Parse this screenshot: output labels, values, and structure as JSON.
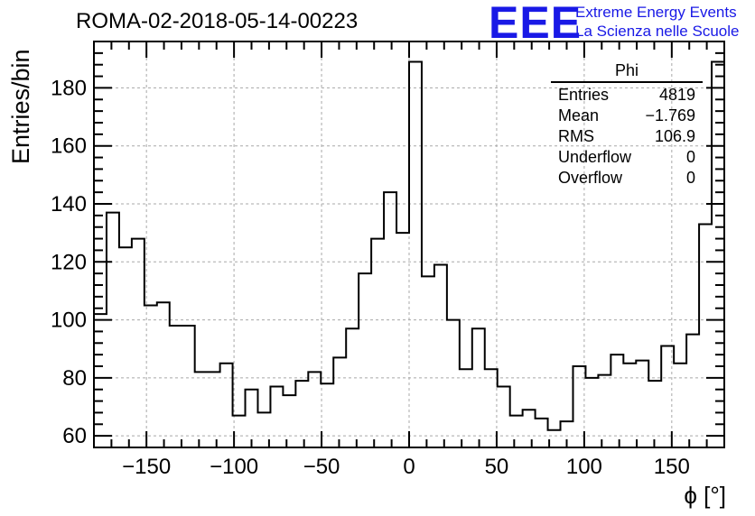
{
  "title": "ROMA-02-2018-05-14-00223",
  "logo": {
    "mark": "EEE",
    "line1": "Extreme Energy Events",
    "line2": "La Scienza nelle Scuole",
    "color": "#1919e6"
  },
  "stats": {
    "name": "Phi",
    "rows": [
      {
        "label": "Entries",
        "value": "4819"
      },
      {
        "label": "Mean",
        "value": "−1.769"
      },
      {
        "label": "RMS",
        "value": "106.9"
      },
      {
        "label": "Underflow",
        "value": "0"
      },
      {
        "label": "Overflow",
        "value": "0"
      }
    ]
  },
  "chart_data": {
    "type": "histogram",
    "title": "ROMA-02-2018-05-14-00223",
    "xlabel": "ϕ [°]",
    "ylabel": "Entries/bin",
    "xlim": [
      -180,
      180
    ],
    "ylim": [
      56,
      196
    ],
    "grid": true,
    "bin_width": 7.2,
    "bin_edges_start": -180,
    "x_ticks": [
      -150,
      -100,
      -50,
      0,
      50,
      100,
      150
    ],
    "x_tick_labels": [
      "−150",
      "−100",
      "−50",
      "0",
      "50",
      "100",
      "150"
    ],
    "y_ticks": [
      60,
      80,
      100,
      120,
      140,
      160,
      180
    ],
    "y_tick_labels": [
      "60",
      "80",
      "100",
      "120",
      "140",
      "160",
      "180"
    ],
    "values": [
      102,
      137,
      125,
      128,
      105,
      106,
      98,
      98,
      82,
      82,
      85,
      67,
      76,
      68,
      77,
      74,
      79,
      82,
      78,
      87,
      97,
      116,
      128,
      144,
      130,
      189,
      115,
      119,
      100,
      83,
      97,
      83,
      77,
      67,
      69,
      66,
      62,
      65,
      84,
      80,
      81,
      88,
      85,
      86,
      79,
      91,
      85,
      95,
      133,
      189
    ]
  }
}
